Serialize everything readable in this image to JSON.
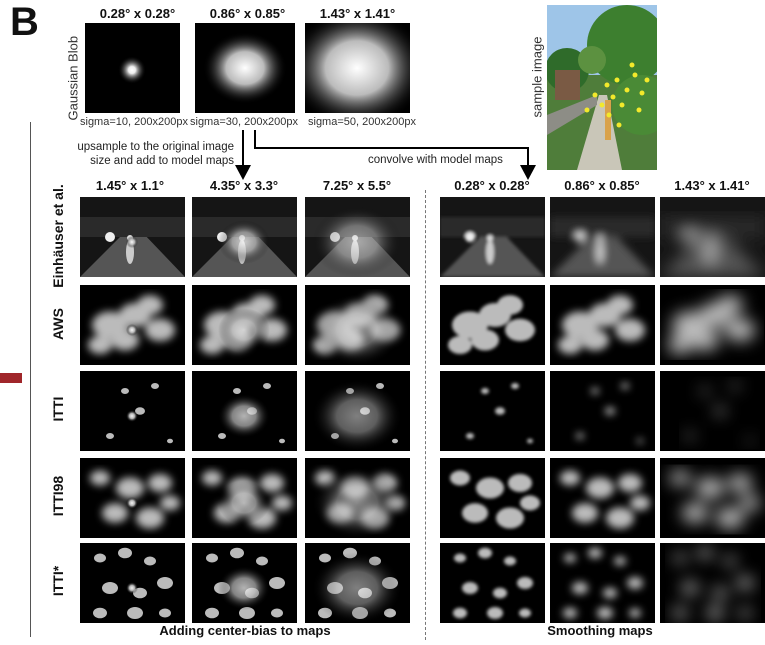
{
  "panel_letter": "B",
  "gaussian_blob_label": "Gaussian Blob",
  "blob_headers": [
    "0.28° x 0.28°",
    "0.86° x 0.85°",
    "1.43° x 1.41°"
  ],
  "blob_captions": [
    "sigma=10, 200x200px",
    "sigma=30, 200x200px",
    "sigma=50, 200x200px"
  ],
  "sample_image_label": "sample image",
  "note_upsample": "upsample to the original image size and add to model maps",
  "note_convolve": "convolve with model maps",
  "left_headers": [
    "1.45° x 1.1°",
    "4.35° x 3.3°",
    "7.25° x 5.5°"
  ],
  "right_headers": [
    "0.28° x 0.28°",
    "0.86° x 0.85°",
    "1.43° x 1.41°"
  ],
  "row_labels": [
    "Einhäuser et al.",
    "AWS",
    "ITTI",
    "ITTI98",
    "ITTI*"
  ],
  "footer_left": "Adding center-bias to maps",
  "footer_right": "Smoothing maps"
}
